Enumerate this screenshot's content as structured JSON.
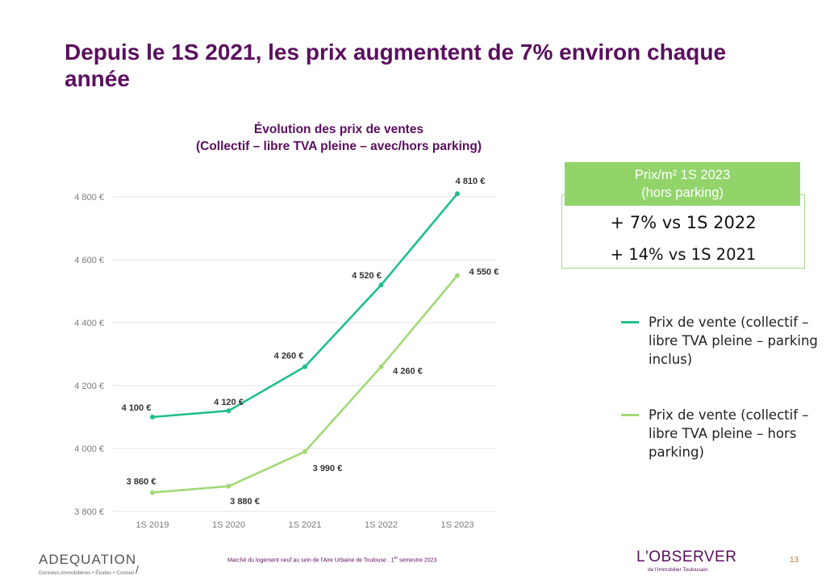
{
  "slide": {
    "title": "Depuis le 1S 2021, les prix augmentent de 7% environ chaque année",
    "page_number": "13"
  },
  "chart_data": {
    "type": "line",
    "title": "Évolution des prix de ventes",
    "subtitle": "(Collectif – libre TVA pleine – avec/hors parking)",
    "categories": [
      "1S 2019",
      "1S 2020",
      "1S 2021",
      "1S 2022",
      "1S 2023"
    ],
    "ylim": [
      3800,
      4850
    ],
    "yticks": [
      3800,
      4000,
      4200,
      4400,
      4600,
      4800
    ],
    "ytick_labels": [
      "3 800 €",
      "4 000 €",
      "4 200 €",
      "4 400 €",
      "4 600 €",
      "4 800 €"
    ],
    "grid": true,
    "legend_position": "right",
    "series": [
      {
        "name": "Prix de vente (collectif – libre TVA pleine – parking inclus)",
        "color": "#1fbf8f",
        "values": [
          4100,
          4120,
          4260,
          4520,
          4810
        ],
        "labels": [
          "4 100 €",
          "4 120 €",
          "4 260 €",
          "4 520 €",
          "4 810 €"
        ]
      },
      {
        "name": "Prix de vente (collectif – libre TVA pleine – hors parking)",
        "color": "#a2d977",
        "values": [
          3860,
          3880,
          3990,
          4260,
          4550
        ],
        "labels": [
          "3 860 €",
          "3 880 €",
          "3 990 €",
          "4 260 €",
          "4 550 €"
        ]
      }
    ]
  },
  "kpi": {
    "header_line1": "Prix/m² 1S 2023",
    "header_line2": "(hors parking)",
    "line1": "+ 7% vs 1S 2022",
    "line2": "+ 14% vs 1S 2021",
    "header_color": "#92d46a"
  },
  "legend": {
    "item1": "Prix de vente (collectif – libre TVA pleine – parking inclus)",
    "item2": "Prix de vente (collectif – libre TVA pleine – hors parking)"
  },
  "footer": {
    "logo_left": "ADEQUATION",
    "tagline": "Données immobilières • Études • Conseil",
    "center_text": "Marché du logement neuf au sein de l'Aire Urbaine de Toulouse . 1",
    "center_sup": "er",
    "center_tail": " semestre 2023",
    "logo_right": "L'OBSERVER",
    "logo_right_sub": "de l'Immobilier Toulousain"
  }
}
